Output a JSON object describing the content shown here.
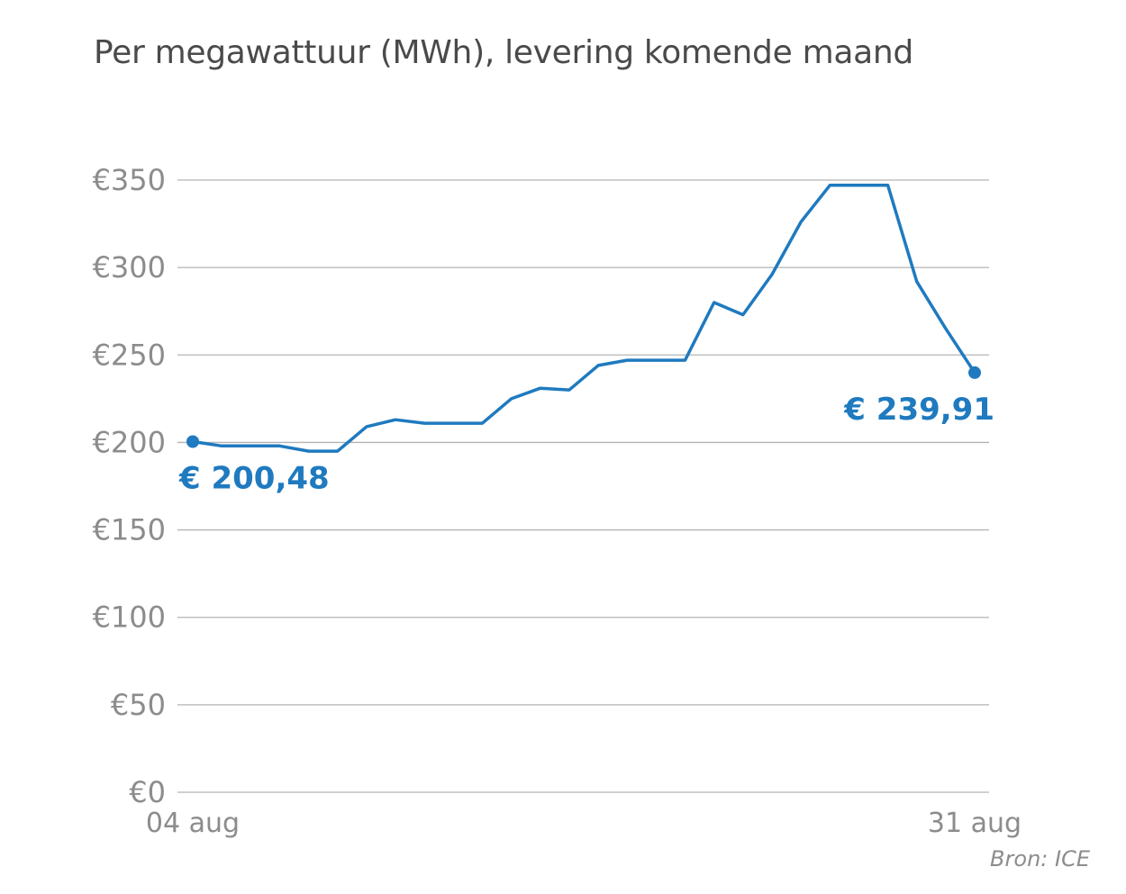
{
  "title": "Per megawattuur (MWh), levering komende maand",
  "source": "Bron: ICE",
  "colors": {
    "line": "#1f7abf",
    "grid": "#b4b4b4",
    "tick_text": "#8c8c8c",
    "title_text": "#4a4a4a"
  },
  "chart_data": {
    "type": "line",
    "title": "Per megawattuur (MWh), levering komende maand",
    "xlabel": "",
    "ylabel": "",
    "ylim": [
      0,
      350
    ],
    "yticks": [
      0,
      50,
      100,
      150,
      200,
      250,
      300,
      350
    ],
    "ytick_labels": [
      "€0",
      "€50",
      "€100",
      "€150",
      "€200",
      "€250",
      "€300",
      "€350"
    ],
    "xlim": [
      4,
      31
    ],
    "xtick_labels": [
      {
        "x": 4,
        "label": "04 aug"
      },
      {
        "x": 31,
        "label": "31 aug"
      }
    ],
    "grid": true,
    "legend": "none",
    "series": [
      {
        "x": [
          4,
          5,
          6,
          7,
          8,
          9,
          10,
          11,
          12,
          13,
          14,
          15,
          16,
          17,
          18,
          19,
          20,
          21,
          22,
          23,
          24,
          25,
          26,
          27,
          28,
          29,
          30,
          31
        ],
        "values": [
          200.48,
          198,
          198,
          198,
          195,
          195,
          209,
          213,
          211,
          211,
          211,
          225,
          231,
          230,
          244,
          247,
          247,
          247,
          280,
          273,
          296,
          326,
          347,
          347,
          347,
          292,
          265,
          239.91
        ]
      }
    ],
    "annotations": [
      {
        "x": 4,
        "y": 200.48,
        "label": "€ 200,48"
      },
      {
        "x": 31,
        "y": 239.91,
        "label": "€ 239,91"
      }
    ]
  }
}
